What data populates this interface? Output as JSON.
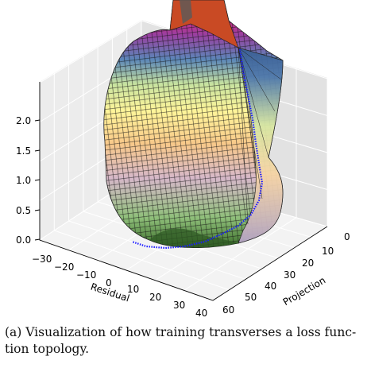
{
  "chart_data": {
    "type": "surface3d",
    "title": "",
    "xlabel": "Residual",
    "ylabel": "Projection",
    "zlabel": "",
    "x_ticks": [
      "−30",
      "−20",
      "−10",
      "0",
      "10",
      "20",
      "30",
      "40"
    ],
    "y_ticks": [
      "0",
      "10",
      "20",
      "30",
      "40",
      "50",
      "60"
    ],
    "z_ticks": [
      "0.0",
      "0.5",
      "1.0",
      "1.5",
      "2.0"
    ],
    "xlim": [
      -30,
      40
    ],
    "ylim": [
      0,
      60
    ],
    "zlim": [
      0,
      2.3
    ],
    "grid": true,
    "colormap": "Spectral",
    "trajectory_color": "#1a1aff",
    "edge_color": "#000000"
  },
  "caption": {
    "line1": "(a) Visualization of how training transverses a loss func-",
    "line2": "tion topology."
  }
}
